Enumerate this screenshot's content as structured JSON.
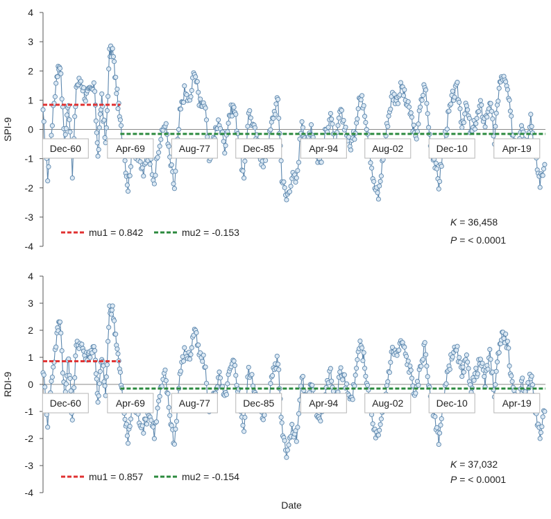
{
  "figure": {
    "xlabel": "Date"
  },
  "chart_data": [
    {
      "type": "line",
      "ylabel": "SPI-9",
      "ylim": [
        -4,
        4
      ],
      "yticks": [
        4,
        3,
        2,
        1,
        0,
        -1,
        -2,
        -3,
        -4
      ],
      "x_range": [
        1958,
        2023
      ],
      "x_category_labels": [
        {
          "label": "Dec-60",
          "x": 1960.9
        },
        {
          "label": "Apr-69",
          "x": 1969.3
        },
        {
          "label": "Aug-77",
          "x": 1977.6
        },
        {
          "label": "Dec-85",
          "x": 1985.9
        },
        {
          "label": "Apr-94",
          "x": 1994.3
        },
        {
          "label": "Aug-02",
          "x": 2002.6
        },
        {
          "label": "Dec-10",
          "x": 2010.9
        },
        {
          "label": "Apr-19",
          "x": 2019.3
        }
      ],
      "series_color": "#5b86ad",
      "marker_fill": "#dbe8f3",
      "anchors": [
        [
          1958.0,
          0.5
        ],
        [
          1958.6,
          -1.6
        ],
        [
          1959.2,
          0.3
        ],
        [
          1959.8,
          1.9
        ],
        [
          1960.2,
          2.3
        ],
        [
          1960.8,
          -0.5
        ],
        [
          1961.3,
          1.0
        ],
        [
          1961.8,
          -1.6
        ],
        [
          1962.3,
          1.5
        ],
        [
          1962.9,
          1.7
        ],
        [
          1963.5,
          1.1
        ],
        [
          1964.1,
          1.3
        ],
        [
          1964.7,
          1.4
        ],
        [
          1965.1,
          -1.0
        ],
        [
          1965.6,
          1.2
        ],
        [
          1966.1,
          -0.6
        ],
        [
          1966.6,
          2.6
        ],
        [
          1967.0,
          2.7
        ],
        [
          1967.5,
          1.4
        ],
        [
          1968.0,
          0.2
        ],
        [
          1968.5,
          -0.8
        ],
        [
          1969.0,
          -2.0
        ],
        [
          1969.6,
          -0.5
        ],
        [
          1970.3,
          -1.0
        ],
        [
          1971.0,
          -1.5
        ],
        [
          1971.7,
          -0.8
        ],
        [
          1972.4,
          -1.7
        ],
        [
          1973.1,
          -0.5
        ],
        [
          1973.8,
          0.3
        ],
        [
          1974.4,
          -1.0
        ],
        [
          1975.0,
          -2.0
        ],
        [
          1975.7,
          0.5
        ],
        [
          1976.3,
          1.3
        ],
        [
          1977.0,
          0.9
        ],
        [
          1977.6,
          2.1
        ],
        [
          1978.2,
          1.0
        ],
        [
          1978.9,
          0.9
        ],
        [
          1979.5,
          -1.0
        ],
        [
          1980.2,
          -0.2
        ],
        [
          1980.8,
          0.3
        ],
        [
          1981.5,
          -0.6
        ],
        [
          1982.1,
          0.5
        ],
        [
          1982.7,
          0.8
        ],
        [
          1983.3,
          -0.3
        ],
        [
          1984.0,
          -1.8
        ],
        [
          1984.6,
          0.7
        ],
        [
          1985.3,
          0.0
        ],
        [
          1985.9,
          -0.6
        ],
        [
          1986.5,
          -1.3
        ],
        [
          1987.2,
          -0.4
        ],
        [
          1987.8,
          0.5
        ],
        [
          1988.4,
          1.0
        ],
        [
          1988.9,
          -1.6
        ],
        [
          1989.5,
          -2.4
        ],
        [
          1990.2,
          -1.6
        ],
        [
          1990.8,
          -1.8
        ],
        [
          1991.5,
          0.4
        ],
        [
          1992.1,
          -0.6
        ],
        [
          1992.7,
          0.2
        ],
        [
          1993.3,
          -0.9
        ],
        [
          1993.9,
          -1.1
        ],
        [
          1994.5,
          -0.2
        ],
        [
          1995.2,
          0.6
        ],
        [
          1995.8,
          -0.9
        ],
        [
          1996.4,
          0.6
        ],
        [
          1997.0,
          0.2
        ],
        [
          1997.7,
          -0.6
        ],
        [
          1998.3,
          -0.2
        ],
        [
          1998.9,
          1.1
        ],
        [
          1999.5,
          0.9
        ],
        [
          2000.1,
          -0.3
        ],
        [
          2000.8,
          -1.9
        ],
        [
          2001.4,
          -2.3
        ],
        [
          2002.0,
          -0.9
        ],
        [
          2002.6,
          0.3
        ],
        [
          2003.2,
          1.2
        ],
        [
          2003.8,
          1.0
        ],
        [
          2004.4,
          1.5
        ],
        [
          2005.0,
          0.9
        ],
        [
          2005.6,
          0.5
        ],
        [
          2006.2,
          -0.4
        ],
        [
          2006.8,
          0.7
        ],
        [
          2007.4,
          1.6
        ],
        [
          2008.0,
          -0.2
        ],
        [
          2008.6,
          -1.0
        ],
        [
          2009.2,
          -1.9
        ],
        [
          2009.8,
          -0.6
        ],
        [
          2010.4,
          0.4
        ],
        [
          2011.0,
          1.1
        ],
        [
          2011.6,
          1.4
        ],
        [
          2012.2,
          0.2
        ],
        [
          2012.8,
          0.8
        ],
        [
          2013.4,
          -0.2
        ],
        [
          2014.0,
          0.3
        ],
        [
          2014.6,
          0.8
        ],
        [
          2015.2,
          0.2
        ],
        [
          2015.8,
          1.0
        ],
        [
          2016.4,
          -0.4
        ],
        [
          2017.0,
          1.5
        ],
        [
          2017.5,
          1.8
        ],
        [
          2018.1,
          1.3
        ],
        [
          2018.7,
          0.0
        ],
        [
          2019.3,
          -0.8
        ],
        [
          2019.9,
          0.3
        ],
        [
          2020.5,
          -0.6
        ],
        [
          2021.1,
          0.5
        ],
        [
          2021.7,
          -1.0
        ],
        [
          2022.3,
          -1.8
        ],
        [
          2022.9,
          -1.2
        ]
      ],
      "mu_segments": [
        {
          "name": "mu1",
          "value": 0.842,
          "x_start": 1958.0,
          "x_end": 1968.0,
          "color": "#e03131"
        },
        {
          "name": "mu2",
          "value": -0.153,
          "x_start": 1968.0,
          "x_end": 2023.0,
          "color": "#2b8a3e"
        }
      ],
      "legend": [
        {
          "label": "mu1 = 0.842",
          "color": "#e03131"
        },
        {
          "label": "mu2 = -0.153",
          "color": "#2b8a3e"
        }
      ],
      "stats": {
        "k_label": "K",
        "k_value": " = 36,458",
        "p_label": "P",
        "p_value": " = < 0.0001"
      }
    },
    {
      "type": "line",
      "ylabel": "RDI-9",
      "ylim": [
        -4,
        4
      ],
      "yticks": [
        4,
        3,
        2,
        1,
        0,
        -1,
        -2,
        -3,
        -4
      ],
      "x_range": [
        1958,
        2023
      ],
      "x_category_labels": [
        {
          "label": "Dec-60",
          "x": 1960.9
        },
        {
          "label": "Apr-69",
          "x": 1969.3
        },
        {
          "label": "Aug-77",
          "x": 1977.6
        },
        {
          "label": "Dec-85",
          "x": 1985.9
        },
        {
          "label": "Apr-94",
          "x": 1994.3
        },
        {
          "label": "Aug-02",
          "x": 2002.6
        },
        {
          "label": "Dec-10",
          "x": 2010.9
        },
        {
          "label": "Apr-19",
          "x": 2019.3
        }
      ],
      "series_color": "#5b86ad",
      "marker_fill": "#dbe8f3",
      "anchors": [
        [
          1958.0,
          0.6
        ],
        [
          1958.6,
          -1.4
        ],
        [
          1959.2,
          0.4
        ],
        [
          1959.8,
          1.8
        ],
        [
          1960.2,
          2.5
        ],
        [
          1960.8,
          -0.6
        ],
        [
          1961.3,
          1.0
        ],
        [
          1961.8,
          -1.3
        ],
        [
          1962.3,
          1.4
        ],
        [
          1962.9,
          1.6
        ],
        [
          1963.5,
          1.0
        ],
        [
          1964.1,
          1.2
        ],
        [
          1964.7,
          1.4
        ],
        [
          1965.1,
          -0.8
        ],
        [
          1965.6,
          1.1
        ],
        [
          1966.1,
          -0.4
        ],
        [
          1966.6,
          2.7
        ],
        [
          1967.0,
          2.8
        ],
        [
          1967.5,
          1.6
        ],
        [
          1968.0,
          0.3
        ],
        [
          1968.5,
          -1.0
        ],
        [
          1969.0,
          -2.1
        ],
        [
          1969.6,
          -0.6
        ],
        [
          1970.3,
          -1.2
        ],
        [
          1971.0,
          -1.6
        ],
        [
          1971.7,
          -1.0
        ],
        [
          1972.4,
          -1.8
        ],
        [
          1973.1,
          -0.4
        ],
        [
          1973.8,
          0.4
        ],
        [
          1974.4,
          -1.1
        ],
        [
          1975.0,
          -2.2
        ],
        [
          1975.7,
          0.4
        ],
        [
          1976.3,
          1.2
        ],
        [
          1977.0,
          1.0
        ],
        [
          1977.6,
          2.1
        ],
        [
          1978.2,
          1.1
        ],
        [
          1978.9,
          0.8
        ],
        [
          1979.5,
          -1.0
        ],
        [
          1980.2,
          -0.3
        ],
        [
          1980.8,
          0.3
        ],
        [
          1981.5,
          -0.6
        ],
        [
          1982.1,
          0.4
        ],
        [
          1982.7,
          0.8
        ],
        [
          1983.3,
          -0.3
        ],
        [
          1984.0,
          -1.7
        ],
        [
          1984.6,
          0.6
        ],
        [
          1985.3,
          -0.1
        ],
        [
          1985.9,
          -0.6
        ],
        [
          1986.5,
          -1.4
        ],
        [
          1987.2,
          -0.5
        ],
        [
          1987.8,
          0.6
        ],
        [
          1988.4,
          0.9
        ],
        [
          1988.9,
          -1.5
        ],
        [
          1989.5,
          -2.5
        ],
        [
          1990.2,
          -1.7
        ],
        [
          1990.8,
          -1.9
        ],
        [
          1991.5,
          0.3
        ],
        [
          1992.1,
          -0.7
        ],
        [
          1992.7,
          0.1
        ],
        [
          1993.3,
          -1.0
        ],
        [
          1993.9,
          -1.2
        ],
        [
          1994.5,
          -0.3
        ],
        [
          1995.2,
          0.5
        ],
        [
          1995.8,
          -0.9
        ],
        [
          1996.4,
          0.5
        ],
        [
          1997.0,
          0.2
        ],
        [
          1997.7,
          -0.7
        ],
        [
          1998.3,
          -0.1
        ],
        [
          1998.9,
          1.5
        ],
        [
          1999.5,
          1.0
        ],
        [
          2000.1,
          -0.4
        ],
        [
          2000.8,
          -1.7
        ],
        [
          2001.4,
          -2.0
        ],
        [
          2002.0,
          -1.0
        ],
        [
          2002.6,
          0.2
        ],
        [
          2003.2,
          1.3
        ],
        [
          2003.8,
          1.1
        ],
        [
          2004.4,
          1.6
        ],
        [
          2005.0,
          1.0
        ],
        [
          2005.6,
          0.4
        ],
        [
          2006.2,
          -0.5
        ],
        [
          2006.8,
          0.6
        ],
        [
          2007.4,
          1.5
        ],
        [
          2008.0,
          -0.3
        ],
        [
          2008.6,
          -1.1
        ],
        [
          2009.2,
          -2.0
        ],
        [
          2009.8,
          -0.7
        ],
        [
          2010.4,
          0.5
        ],
        [
          2011.0,
          1.2
        ],
        [
          2011.6,
          1.2
        ],
        [
          2012.2,
          0.3
        ],
        [
          2012.8,
          0.9
        ],
        [
          2013.4,
          -0.1
        ],
        [
          2014.0,
          0.4
        ],
        [
          2014.6,
          0.9
        ],
        [
          2015.2,
          0.1
        ],
        [
          2015.8,
          1.1
        ],
        [
          2016.4,
          -0.3
        ],
        [
          2017.0,
          1.4
        ],
        [
          2017.5,
          1.9
        ],
        [
          2018.1,
          1.5
        ],
        [
          2018.7,
          -0.1
        ],
        [
          2019.3,
          -0.9
        ],
        [
          2019.9,
          0.2
        ],
        [
          2020.5,
          -0.5
        ],
        [
          2021.1,
          0.4
        ],
        [
          2021.7,
          -0.9
        ],
        [
          2022.3,
          -1.9
        ],
        [
          2022.9,
          -1.0
        ]
      ],
      "mu_segments": [
        {
          "name": "mu1",
          "value": 0.857,
          "x_start": 1958.0,
          "x_end": 1968.0,
          "color": "#e03131"
        },
        {
          "name": "mu2",
          "value": -0.154,
          "x_start": 1968.0,
          "x_end": 2023.0,
          "color": "#2b8a3e"
        }
      ],
      "legend": [
        {
          "label": "mu1 = 0.857",
          "color": "#e03131"
        },
        {
          "label": "mu2 = -0.154",
          "color": "#2b8a3e"
        }
      ],
      "stats": {
        "k_label": "K",
        "k_value": " = 37,032",
        "p_label": "P",
        "p_value": " = < 0.0001"
      }
    }
  ]
}
